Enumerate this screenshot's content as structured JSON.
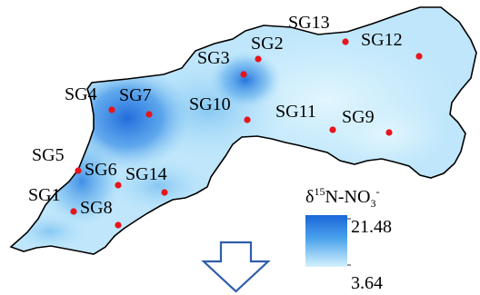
{
  "legend": {
    "title": "δ15N-NO3-",
    "title_parts": {
      "delta": "δ",
      "sup": "15",
      "mid": "N-NO",
      "sub": "3",
      "sup2": "-"
    },
    "max_label": "21.48",
    "min_label": "3.64",
    "max_value": 21.48,
    "min_value": 3.64,
    "color_high": "#1a66d9",
    "color_low": "#d4f1fd"
  },
  "basin_fill_base": "#bfe6fb",
  "marker_color": "#e8141c",
  "sites": [
    {
      "id": "SG1",
      "label": "SG1"
    },
    {
      "id": "SG2",
      "label": "SG2"
    },
    {
      "id": "SG3",
      "label": "SG3"
    },
    {
      "id": "SG4",
      "label": "SG4"
    },
    {
      "id": "SG5",
      "label": "SG5"
    },
    {
      "id": "SG6",
      "label": "SG6"
    },
    {
      "id": "SG7",
      "label": "SG7"
    },
    {
      "id": "SG8",
      "label": "SG8"
    },
    {
      "id": "SG9",
      "label": "SG9"
    },
    {
      "id": "SG10",
      "label": "SG10"
    },
    {
      "id": "SG11",
      "label": "SG11"
    },
    {
      "id": "SG12",
      "label": "SG12"
    },
    {
      "id": "SG13",
      "label": "SG13"
    },
    {
      "id": "SG14",
      "label": "SG14"
    }
  ],
  "arrow": {
    "direction": "down",
    "icon": "hollow-down-arrow-icon"
  }
}
